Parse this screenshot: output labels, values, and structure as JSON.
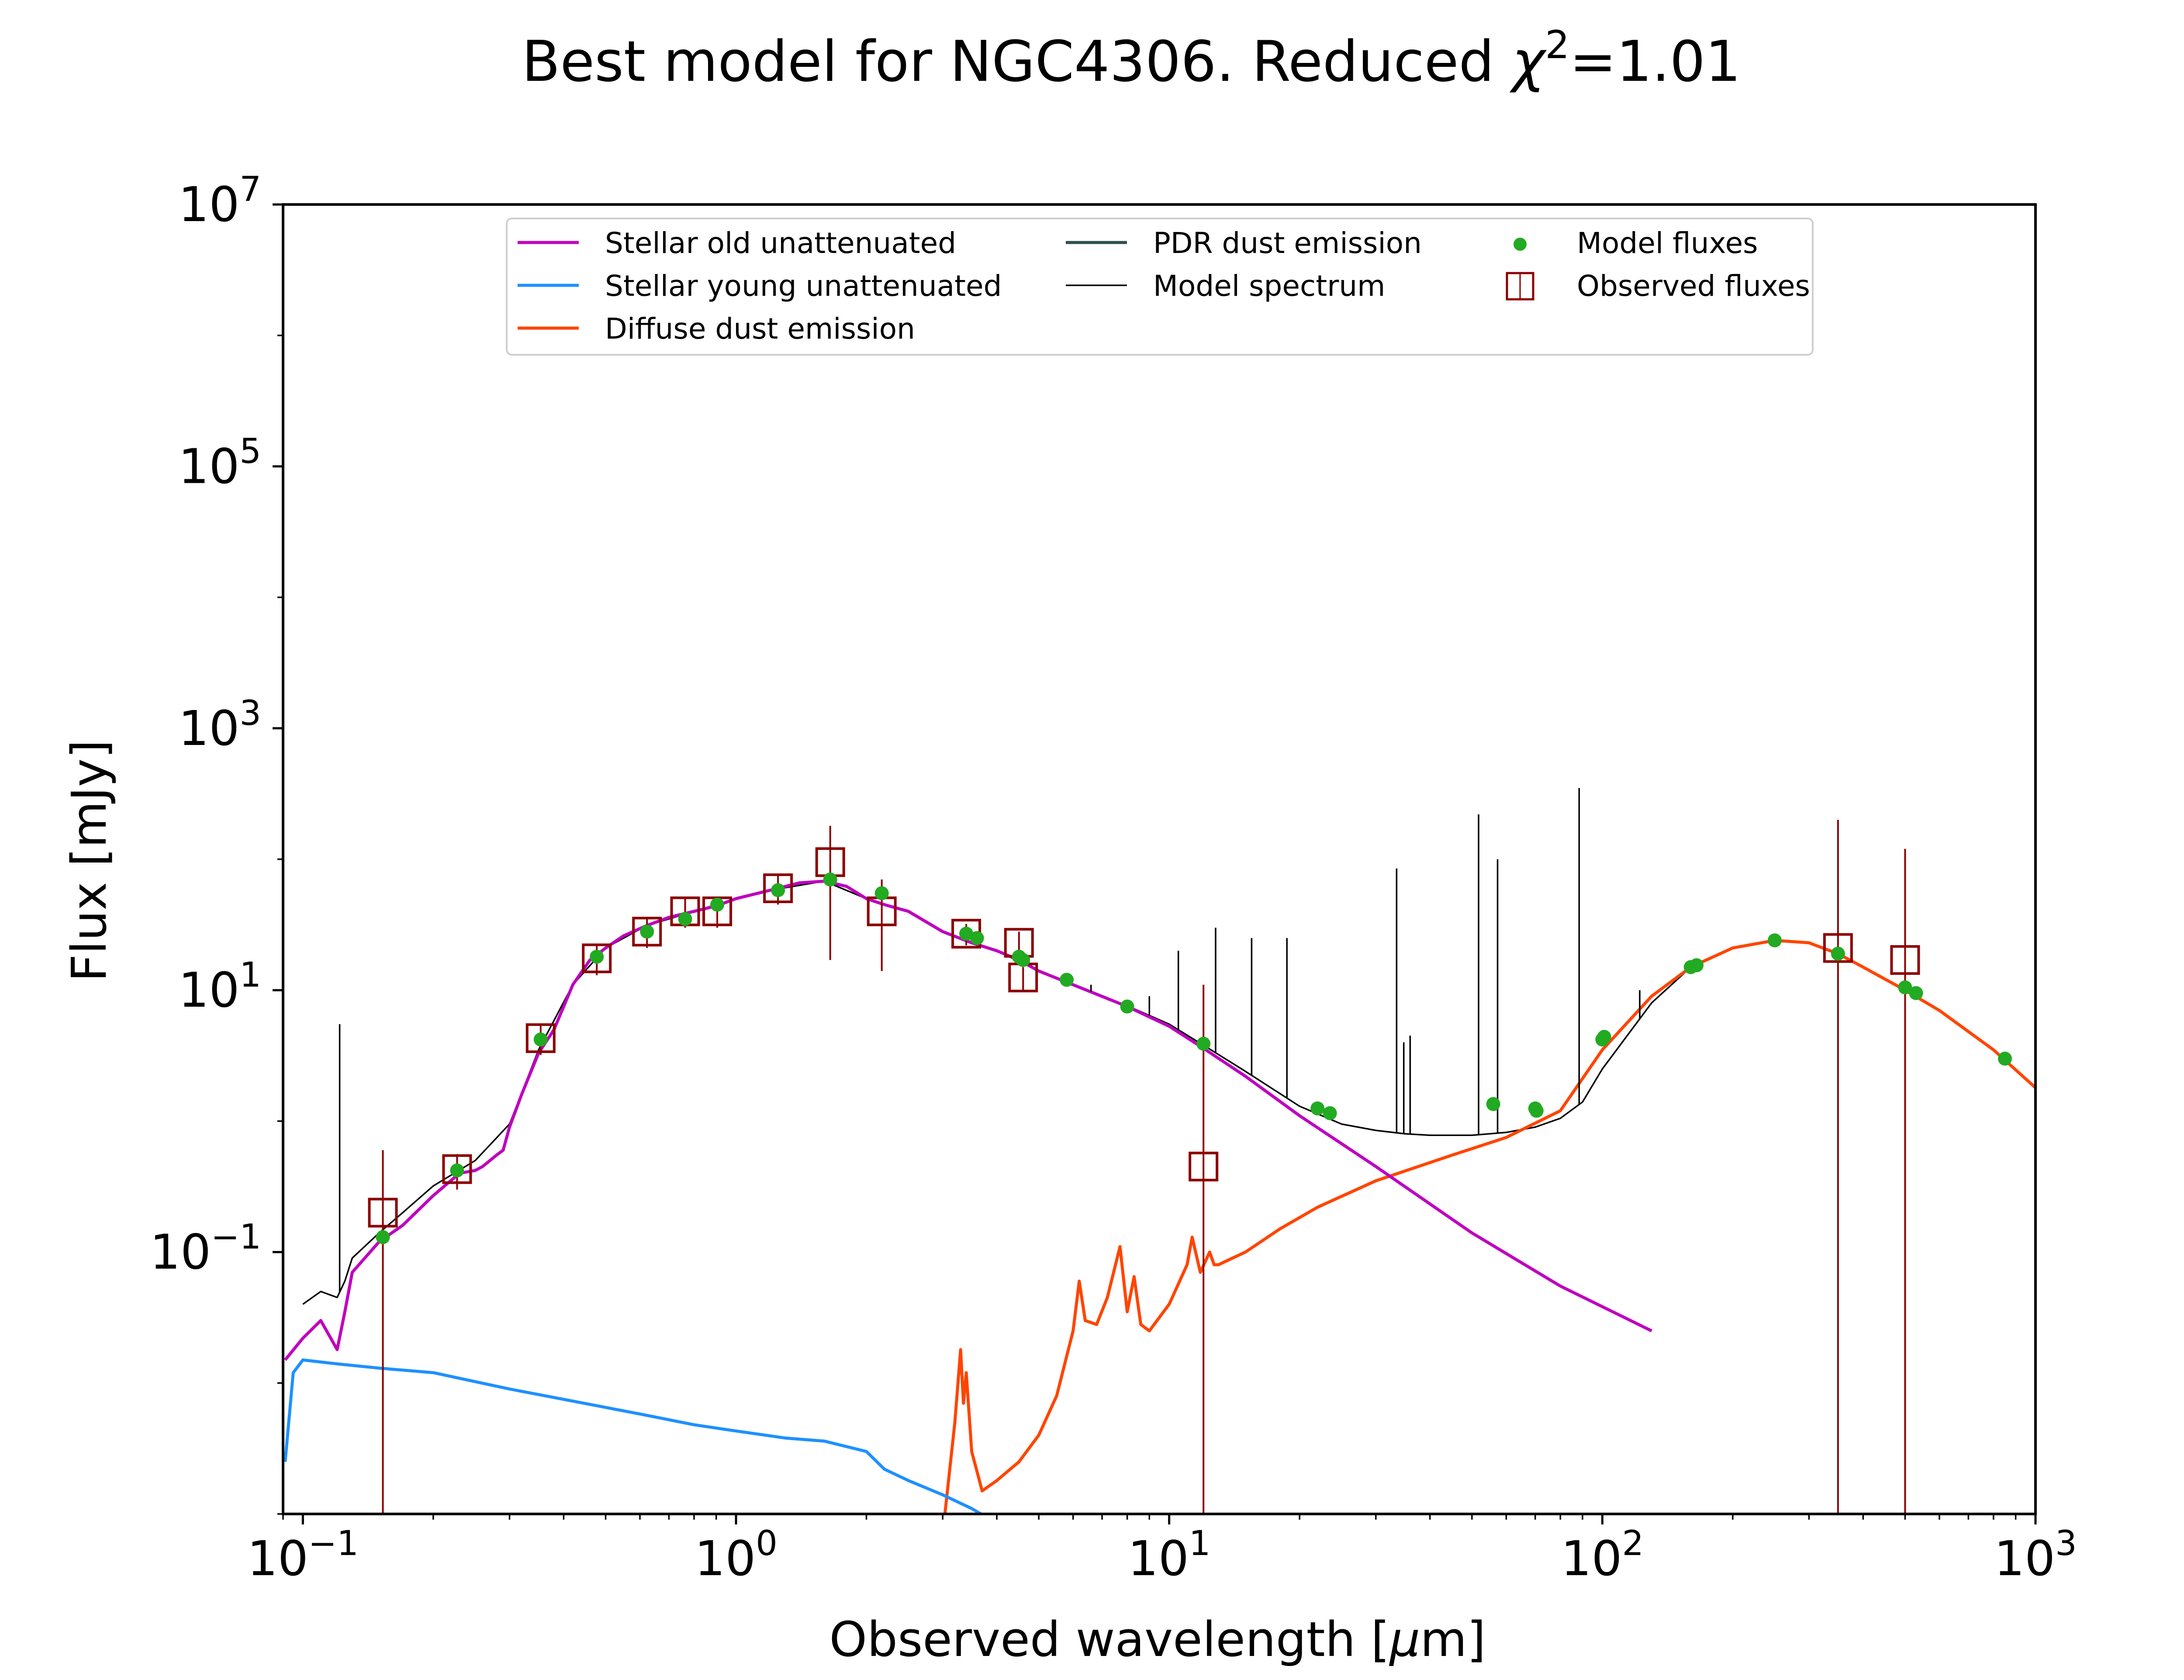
{
  "chart_data": {
    "type": "line",
    "title_text": "Best model for NGC4306. Reduced ",
    "title_chi": "χ",
    "title_sup": "2",
    "title_value": "=1.01",
    "xlabel_text": "Observed wavelength [",
    "xlabel_mu": "μ",
    "xlabel_end": "m]",
    "ylabel": "Flux [mJy]",
    "xscale": "log",
    "yscale": "log",
    "xlim": [
      0.09,
      1000
    ],
    "ylim": [
      0.001,
      10000000
    ],
    "x_ticks": [
      {
        "value": 0.1,
        "base": "10",
        "exp": "−1"
      },
      {
        "value": 1,
        "base": "10",
        "exp": "0"
      },
      {
        "value": 10,
        "base": "10",
        "exp": "1"
      },
      {
        "value": 100,
        "base": "10",
        "exp": "2"
      },
      {
        "value": 1000,
        "base": "10",
        "exp": "3"
      }
    ],
    "y_ticks": [
      {
        "value": 0.1,
        "base": "10",
        "exp": "−1"
      },
      {
        "value": 10,
        "base": "10",
        "exp": "1"
      },
      {
        "value": 1000,
        "base": "10",
        "exp": "3"
      },
      {
        "value": 100000,
        "base": "10",
        "exp": "5"
      },
      {
        "value": 10000000,
        "base": "10",
        "exp": "7"
      }
    ],
    "legend_position": "upper center",
    "legend": [
      {
        "label": "Stellar old unattenuated",
        "kind": "line",
        "color": "#bf00bf",
        "col": 0,
        "row": 0
      },
      {
        "label": "Stellar young unattenuated",
        "kind": "line",
        "color": "#1e90ff",
        "col": 0,
        "row": 1
      },
      {
        "label": "Diffuse dust emission",
        "kind": "line",
        "color": "#ff4500",
        "col": 0,
        "row": 2
      },
      {
        "label": "PDR dust emission",
        "kind": "line",
        "color": "#2f4f4f",
        "col": 1,
        "row": 0
      },
      {
        "label": "Model spectrum",
        "kind": "thin",
        "color": "#000000",
        "col": 1,
        "row": 1
      },
      {
        "label": "Model fluxes",
        "kind": "dot",
        "color": "#22aa22",
        "col": 2,
        "row": 0
      },
      {
        "label": "Observed fluxes",
        "kind": "square",
        "color": "#8b0000",
        "col": 2,
        "row": 1
      }
    ],
    "series": [
      {
        "name": "Stellar old unattenuated",
        "color": "#bf00bf",
        "x": [
          0.091,
          0.1,
          0.11,
          0.12,
          0.125,
          0.13,
          0.15,
          0.17,
          0.2,
          0.23,
          0.25,
          0.26,
          0.28,
          0.29,
          0.3,
          0.32,
          0.35,
          0.38,
          0.42,
          0.46,
          0.5,
          0.55,
          0.62,
          0.7,
          0.8,
          0.9,
          1.0,
          1.2,
          1.4,
          1.6,
          1.8,
          2.0,
          2.2,
          2.5,
          3.0,
          3.5,
          4.0,
          4.5,
          5.0,
          6.0,
          8.0,
          10.0,
          12.0,
          15.0,
          20.0,
          30.0,
          50.0,
          80.0,
          130.0
        ],
        "y": [
          0.015,
          0.022,
          0.03,
          0.018,
          0.035,
          0.07,
          0.12,
          0.16,
          0.27,
          0.4,
          0.42,
          0.45,
          0.55,
          0.6,
          0.9,
          1.6,
          3.3,
          5.0,
          11.0,
          17.0,
          21.0,
          26.0,
          31.0,
          36.0,
          40.0,
          44.0,
          50.0,
          58.0,
          66.0,
          68.0,
          62.0,
          50.0,
          45.0,
          40.0,
          28.0,
          23.0,
          20.0,
          17.0,
          14.0,
          11.0,
          7.5,
          5.3,
          3.6,
          2.2,
          1.1,
          0.45,
          0.14,
          0.055,
          0.025
        ]
      },
      {
        "name": "Stellar young unattenuated",
        "color": "#1e90ff",
        "x": [
          0.091,
          0.095,
          0.1,
          0.12,
          0.15,
          0.2,
          0.3,
          0.4,
          0.6,
          0.8,
          1.0,
          1.3,
          1.6,
          2.0,
          2.2,
          2.5,
          3.0,
          3.5,
          4.0,
          4.2
        ],
        "y": [
          0.0025,
          0.012,
          0.015,
          0.014,
          0.013,
          0.012,
          0.009,
          0.0075,
          0.0058,
          0.0048,
          0.0043,
          0.0038,
          0.0036,
          0.003,
          0.0022,
          0.0018,
          0.0014,
          0.0011,
          0.00085,
          0.0008
        ]
      },
      {
        "name": "Diffuse dust emission",
        "color": "#ff4500",
        "x": [
          3.0,
          3.2,
          3.3,
          3.35,
          3.4,
          3.5,
          3.7,
          4.0,
          4.5,
          5.0,
          5.5,
          6.0,
          6.2,
          6.4,
          6.8,
          7.2,
          7.7,
          8.0,
          8.3,
          8.6,
          9.0,
          10.0,
          11.0,
          11.3,
          11.8,
          12.4,
          12.7,
          13.0,
          13.5,
          15.0,
          18.0,
          22.0,
          30.0,
          45.0,
          60.0,
          80.0,
          100.0,
          130.0,
          160.0,
          200.0,
          250.0,
          300.0,
          350.0,
          400.0,
          500.0,
          600.0,
          800.0,
          1000.0
        ],
        "y": [
          0.0007,
          0.005,
          0.018,
          0.007,
          0.012,
          0.003,
          0.0015,
          0.0018,
          0.0025,
          0.004,
          0.008,
          0.025,
          0.06,
          0.03,
          0.028,
          0.045,
          0.11,
          0.035,
          0.065,
          0.028,
          0.025,
          0.04,
          0.08,
          0.13,
          0.07,
          0.1,
          0.08,
          0.08,
          0.085,
          0.1,
          0.15,
          0.22,
          0.35,
          0.55,
          0.75,
          1.2,
          3.5,
          9.0,
          15.0,
          21.0,
          24.0,
          23.0,
          19.0,
          15.0,
          10.0,
          7.0,
          3.5,
          1.8
        ]
      },
      {
        "name": "Model spectrum",
        "color": "#000000",
        "x": [
          0.1,
          0.11,
          0.12,
          0.125,
          0.13,
          0.15,
          0.17,
          0.2,
          0.25,
          0.3,
          0.35,
          0.42,
          0.5,
          0.62,
          0.8,
          1.0,
          1.2,
          1.6,
          2.0,
          2.5,
          3.0,
          3.5,
          4.0,
          5.0,
          6.0,
          8.0,
          10.0,
          12.0,
          15.0,
          20.0,
          25.0,
          30.0,
          35.0,
          40.0,
          50.0,
          60.0,
          70.0,
          80.0,
          90.0,
          100.0,
          130.0,
          160.0,
          200.0,
          250.0,
          300.0,
          350.0,
          400.0,
          500.0,
          600.0,
          800.0,
          1000.0
        ],
        "y": [
          0.04,
          0.05,
          0.045,
          0.06,
          0.09,
          0.14,
          0.2,
          0.32,
          0.5,
          0.95,
          3.5,
          11.0,
          21.0,
          31.0,
          40.0,
          50.0,
          58.0,
          68.0,
          50.0,
          40.0,
          28.0,
          23.0,
          20.0,
          14.0,
          11.0,
          7.6,
          5.5,
          3.8,
          2.4,
          1.3,
          0.95,
          0.85,
          0.8,
          0.78,
          0.78,
          0.82,
          0.9,
          1.05,
          1.4,
          2.5,
          8.0,
          15.0,
          21.0,
          24.0,
          23.0,
          19.0,
          15.0,
          10.0,
          7.0,
          3.5,
          1.8
        ]
      }
    ],
    "emission_lines": [
      {
        "x": 0.1216,
        "y": 5.5
      },
      {
        "x": 6.6,
        "y": 11.0
      },
      {
        "x": 8.2,
        "y": 7.0
      },
      {
        "x": 9.0,
        "y": 9.0
      },
      {
        "x": 10.5,
        "y": 20.0
      },
      {
        "x": 12.8,
        "y": 30.0
      },
      {
        "x": 15.5,
        "y": 25.0
      },
      {
        "x": 18.7,
        "y": 25.0
      },
      {
        "x": 33.5,
        "y": 85.0
      },
      {
        "x": 34.8,
        "y": 4.0
      },
      {
        "x": 36.0,
        "y": 4.5
      },
      {
        "x": 51.8,
        "y": 220.0
      },
      {
        "x": 57.3,
        "y": 100.0
      },
      {
        "x": 88.4,
        "y": 350.0
      },
      {
        "x": 122.0,
        "y": 10.0
      }
    ],
    "model_fluxes": {
      "color": "#22aa22",
      "x": [
        0.153,
        0.227,
        0.354,
        0.477,
        0.623,
        0.763,
        0.905,
        1.25,
        1.65,
        2.17,
        3.4,
        3.6,
        4.5,
        4.6,
        5.8,
        8.0,
        12.0,
        22.0,
        23.5,
        56.0,
        70.0,
        70.5,
        100.0,
        101.0,
        160.0,
        165.0,
        250.0,
        350.0,
        500.0,
        530.0,
        850.0
      ],
      "y": [
        0.13,
        0.42,
        4.2,
        18.0,
        28.0,
        35.0,
        45.0,
        58.0,
        70.0,
        55.0,
        27.0,
        25.0,
        18.0,
        17.0,
        12.0,
        7.5,
        3.9,
        1.25,
        1.15,
        1.35,
        1.25,
        1.2,
        4.2,
        4.4,
        15.0,
        15.5,
        24.0,
        19.0,
        10.5,
        9.5,
        3.0
      ]
    },
    "observed_fluxes": {
      "color": "#8b0000",
      "points": [
        {
          "x": 0.153,
          "y": 0.2,
          "lo": 0.001,
          "hi": 0.6
        },
        {
          "x": 0.227,
          "y": 0.43,
          "lo": 0.3,
          "hi": 0.56
        },
        {
          "x": 0.354,
          "y": 4.3,
          "lo": 3.2,
          "hi": 5.4
        },
        {
          "x": 0.477,
          "y": 17.5,
          "lo": 13.0,
          "hi": 22.0
        },
        {
          "x": 0.623,
          "y": 28.0,
          "lo": 21.0,
          "hi": 35.0
        },
        {
          "x": 0.763,
          "y": 40.0,
          "lo": 30.0,
          "hi": 50.0
        },
        {
          "x": 0.905,
          "y": 40.0,
          "lo": 30.0,
          "hi": 50.0
        },
        {
          "x": 1.25,
          "y": 60.0,
          "lo": 45.0,
          "hi": 75.0
        },
        {
          "x": 1.65,
          "y": 95.0,
          "lo": 17.0,
          "hi": 180.0
        },
        {
          "x": 2.17,
          "y": 40.0,
          "lo": 14.0,
          "hi": 70.0
        },
        {
          "x": 3.4,
          "y": 27.0,
          "lo": 22.0,
          "hi": 32.0
        },
        {
          "x": 4.5,
          "y": 23.0,
          "lo": 18.0,
          "hi": 28.0
        },
        {
          "x": 4.6,
          "y": 12.5,
          "lo": 10.0,
          "hi": 15.0
        },
        {
          "x": 12.0,
          "y": 0.45,
          "lo": 0.001,
          "hi": 11.0
        },
        {
          "x": 350.0,
          "y": 21.0,
          "lo": 0.001,
          "hi": 200.0
        },
        {
          "x": 500.0,
          "y": 17.0,
          "lo": 0.001,
          "hi": 120.0
        }
      ]
    }
  }
}
